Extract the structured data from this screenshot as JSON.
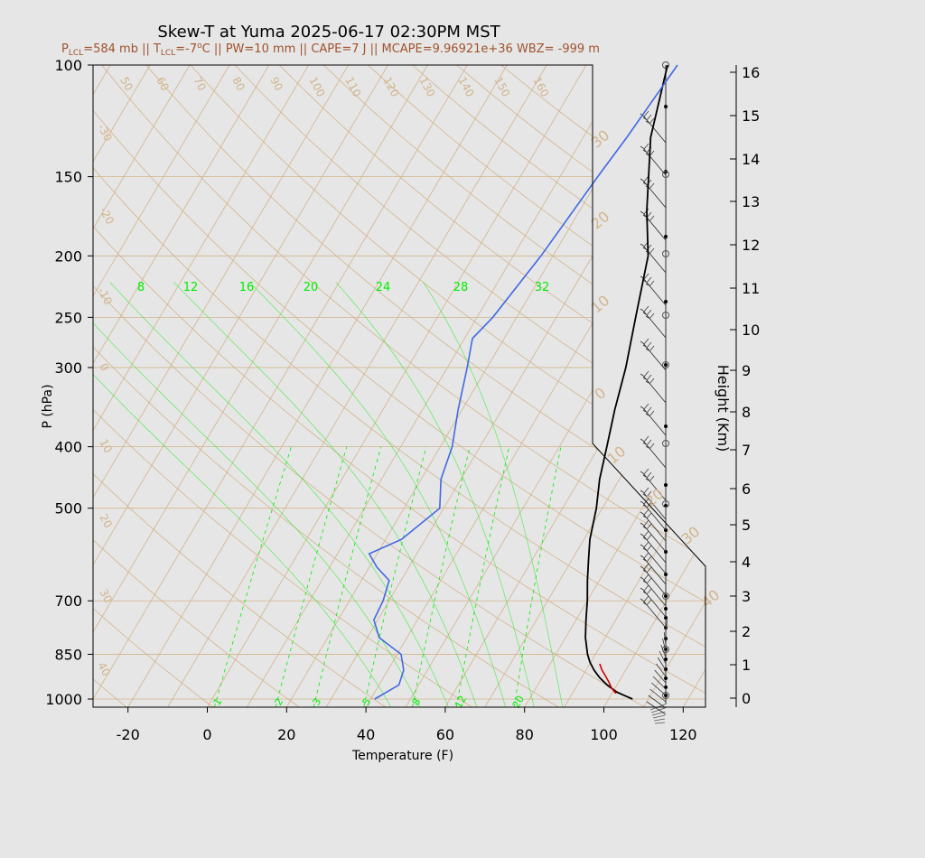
{
  "title": "Skew-T at Yuma 2025-06-17 02:30PM MST",
  "subtitle": {
    "p_lcl_label": "P",
    "p_lcl_sub": "LCL",
    "p_lcl_value": "=584 mb || ",
    "t_lcl_label": "T",
    "t_lcl_sub": "LCL",
    "t_lcl_value": "=-7",
    "degree": "o",
    "rest": "C || PW=10 mm || CAPE=7 J || MCAPE=9.96921e+36 WBZ= -999 m"
  },
  "colors": {
    "background": "#e6e6e6",
    "temperature": "#000000",
    "dewpoint": "#4169e1",
    "parcel": "#cc0000",
    "isotherm": "#d2b48c",
    "mixing_ratio": "#00ee00"
  },
  "chart_data": {
    "type": "line",
    "title": "Skew-T at Yuma 2025-06-17 02:30PM MST",
    "xlabel": "Temperature (F)",
    "ylabel": "P (hPa)",
    "y2label": "Height (Km)",
    "xlim": [
      -28,
      126
    ],
    "ylim_hpa": [
      1030,
      100
    ],
    "y_scale": "log",
    "x_ticks": [
      -20,
      0,
      20,
      40,
      60,
      80,
      100,
      120
    ],
    "y_ticks_hpa": [
      100,
      150,
      200,
      250,
      300,
      400,
      500,
      700,
      850,
      1000
    ],
    "height_ticks_km": [
      0,
      1,
      2,
      3,
      4,
      5,
      6,
      7,
      8,
      9,
      10,
      11,
      12,
      13,
      14,
      15,
      16
    ],
    "grid": true,
    "isotherm_labels_f": [
      -30,
      -20,
      -10,
      0,
      10,
      20,
      30,
      40,
      50,
      60,
      70,
      80,
      90,
      100,
      110,
      120,
      130,
      140,
      150,
      160
    ],
    "mixing_ratio_labels_top": [
      "8",
      "12",
      "16",
      "20",
      "24",
      "28",
      "32"
    ],
    "mixing_ratio_labels_bottom": [
      "1",
      "2",
      "3",
      "5",
      "8",
      "12",
      "20"
    ],
    "hodograph_labels": [
      "30",
      "20",
      "10",
      "0",
      "10",
      "20",
      "30",
      "40"
    ],
    "series": [
      {
        "key": "temperature",
        "points": [
          [
            1000,
            106.0
          ],
          [
            990,
            104.0
          ],
          [
            975,
            101.0
          ],
          [
            950,
            97.5
          ],
          [
            925,
            94.5
          ],
          [
            900,
            92.0
          ],
          [
            875,
            89.8
          ],
          [
            850,
            88.0
          ],
          [
            800,
            85.0
          ],
          [
            750,
            82.5
          ],
          [
            700,
            80.0
          ],
          [
            650,
            77.0
          ],
          [
            600,
            74.0
          ],
          [
            560,
            71.5
          ],
          [
            500,
            68.5
          ],
          [
            450,
            65.0
          ],
          [
            400,
            62.0
          ],
          [
            350,
            58.5
          ],
          [
            300,
            55.0
          ],
          [
            250,
            50.0
          ],
          [
            200,
            44.0
          ],
          [
            170,
            37.0
          ],
          [
            130,
            27.0
          ],
          [
            100,
            20.5
          ]
        ]
      },
      {
        "key": "dewpoint",
        "points": [
          [
            1000,
            41.0
          ],
          [
            950,
            45.0
          ],
          [
            900,
            44.0
          ],
          [
            850,
            41.0
          ],
          [
            800,
            33.0
          ],
          [
            750,
            29.0
          ],
          [
            700,
            28.5
          ],
          [
            650,
            27.0
          ],
          [
            620,
            22.0
          ],
          [
            590,
            18.0
          ],
          [
            560,
            24.0
          ],
          [
            500,
            29.0
          ],
          [
            450,
            25.0
          ],
          [
            400,
            23.0
          ],
          [
            350,
            19.0
          ],
          [
            300,
            15.0
          ],
          [
            270,
            12.0
          ],
          [
            250,
            14.0
          ],
          [
            200,
            17.0
          ],
          [
            150,
            19.5
          ],
          [
            130,
            21.0
          ],
          [
            100,
            23.0
          ]
        ]
      },
      {
        "key": "parcel",
        "points": [
          [
            980,
            101.0
          ],
          [
            960,
            99.0
          ],
          [
            940,
            97.5
          ],
          [
            920,
            95.8
          ],
          [
            900,
            94.0
          ],
          [
            880,
            92.5
          ]
        ]
      }
    ]
  }
}
